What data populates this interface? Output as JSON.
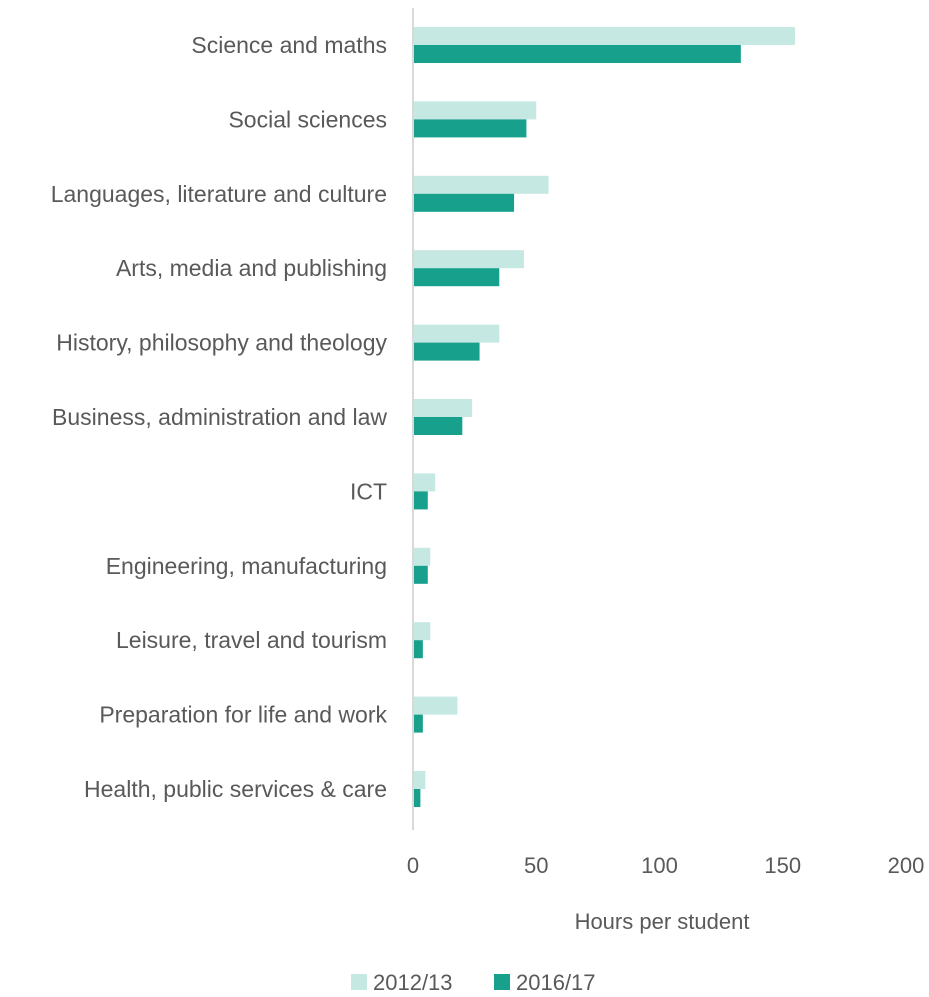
{
  "chart_data": {
    "type": "bar",
    "orientation": "horizontal",
    "title": "",
    "xlabel": "Hours per student",
    "ylabel": "",
    "xlim": [
      0,
      200
    ],
    "xticks": [
      0,
      50,
      100,
      150,
      200
    ],
    "grid": false,
    "legend_position": "bottom",
    "categories": [
      "Science and maths",
      "Social sciences",
      "Languages, literature and culture",
      "Arts, media and publishing",
      "History, philosophy and theology",
      "Business, administration and law",
      "ICT",
      "Engineering, manufacturing",
      "Leisure, travel and tourism",
      "Preparation for life and work",
      "Health, public services & care"
    ],
    "series": [
      {
        "name": "2012/13",
        "color": "#c5e8e2",
        "values": [
          155,
          50,
          55,
          45,
          35,
          24,
          9,
          7,
          7,
          18,
          5
        ]
      },
      {
        "name": "2016/17",
        "color": "#17a08c",
        "values": [
          133,
          46,
          41,
          35,
          27,
          20,
          6,
          6,
          4,
          4,
          3
        ]
      }
    ]
  }
}
